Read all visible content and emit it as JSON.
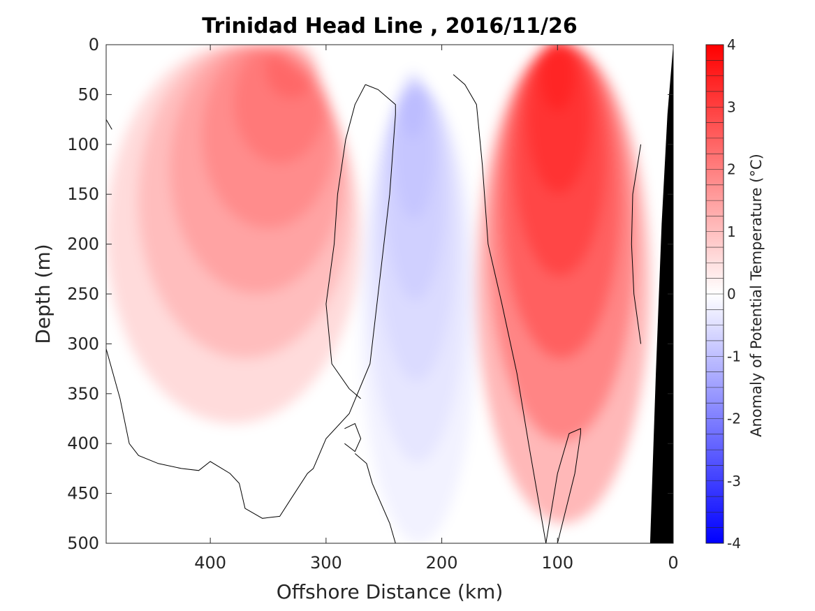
{
  "chart_data": {
    "type": "heatmap",
    "title": "Trinidad Head Line , 2016/11/26",
    "xlabel": "Offshore Distance (km)",
    "ylabel": "Depth (m)",
    "xlim": [
      490,
      0
    ],
    "ylim": [
      0,
      500
    ],
    "x_ticks": [
      400,
      300,
      200,
      100,
      0
    ],
    "y_ticks": [
      0,
      50,
      100,
      150,
      200,
      250,
      300,
      350,
      400,
      450,
      500
    ],
    "colorbar": {
      "label": "Anomaly of Potential Temperature (°C)",
      "range": [
        -4,
        4
      ],
      "ticks": [
        4,
        3,
        2,
        1,
        0,
        -1,
        -2,
        -3,
        -4
      ],
      "levels": [
        -4,
        -3.75,
        -3.5,
        -3.25,
        -3,
        -2.75,
        -2.5,
        -2.25,
        -2,
        -1.75,
        -1.5,
        -1.25,
        -1,
        -0.75,
        -0.5,
        -0.25,
        0,
        0.25,
        0.5,
        0.75,
        1,
        1.25,
        1.5,
        1.75,
        2,
        2.25,
        2.5,
        2.75,
        3,
        3.25,
        3.5,
        3.75,
        4
      ],
      "colors": {
        "negative": "#0000ff",
        "zero": "#ffffff",
        "positive": "#ff0000"
      }
    },
    "anomaly_features": [
      {
        "kind": "warm",
        "x_range": [
          490,
          270
        ],
        "depth_range": [
          0,
          380
        ],
        "peak_anomaly": 2.0,
        "peak_x": 330,
        "peak_depth": 25
      },
      {
        "kind": "warm",
        "x_range": [
          170,
          20
        ],
        "depth_range": [
          0,
          480
        ],
        "peak_anomaly": 4.0,
        "peak_x": 100,
        "peak_depth": 30
      },
      {
        "kind": "cool",
        "x_range": [
          270,
          170
        ],
        "depth_range": [
          45,
          500
        ],
        "peak_anomaly": -0.75,
        "peak_x": 225,
        "peak_depth": 60
      }
    ],
    "zero_contour_lines": [
      {
        "x": [
          490,
          478,
          470,
          462,
          445,
          425,
          410,
          400,
          383,
          375,
          370,
          355,
          340,
          330,
          316,
          311,
          300,
          280,
          262,
          255,
          245,
          240,
          240,
          255,
          266
        ],
        "depth": [
          305,
          355,
          400,
          412,
          420,
          425,
          427,
          418,
          430,
          440,
          465,
          475,
          473,
          455,
          430,
          425,
          395,
          370,
          320,
          250,
          150,
          70,
          60,
          45,
          40
        ]
      },
      {
        "x": [
          266,
          275,
          283,
          290,
          293,
          300,
          295,
          280,
          270
        ],
        "depth": [
          40,
          60,
          95,
          150,
          200,
          260,
          320,
          345,
          355
        ]
      },
      {
        "x": [
          490,
          485
        ],
        "depth": [
          75,
          85
        ]
      },
      {
        "x": [
          284,
          275,
          270,
          275,
          284
        ],
        "depth": [
          385,
          380,
          395,
          408,
          400
        ]
      },
      {
        "x": [
          275,
          265,
          260,
          245,
          240,
          240,
          250
        ],
        "depth": [
          410,
          420,
          440,
          480,
          500,
          500,
          500
        ]
      },
      {
        "x": [
          190,
          180,
          170,
          165,
          160,
          148,
          135,
          125,
          110
        ],
        "depth": [
          30,
          40,
          60,
          120,
          200,
          260,
          330,
          400,
          500
        ]
      },
      {
        "x": [
          100,
          85,
          80,
          80,
          90,
          100,
          110
        ],
        "depth": [
          500,
          430,
          390,
          385,
          390,
          430,
          500
        ]
      },
      {
        "x": [
          28,
          35,
          36,
          34,
          28
        ],
        "depth": [
          100,
          150,
          200,
          250,
          300
        ]
      }
    ],
    "bathymetry": {
      "x": [
        20,
        15,
        10,
        5,
        0
      ],
      "depth": [
        500,
        330,
        180,
        70,
        0
      ]
    }
  }
}
